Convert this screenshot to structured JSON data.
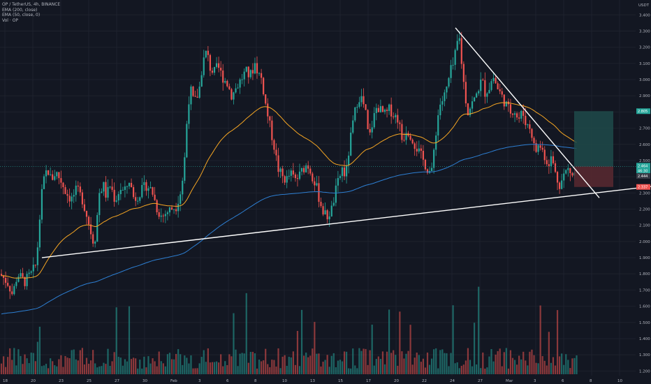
{
  "legend": {
    "symbol": "OP / TetherUS, 4h, BINANCE",
    "ema200": "EMA (200, close)",
    "ema50": "EMA (50, close, 0)",
    "vol": "Vol · OP"
  },
  "currency": "USDT",
  "colors": {
    "background": "#131722",
    "grid": "#1e222d",
    "up": "#26a69a",
    "down": "#ef5350",
    "ema50": "#f6a623",
    "ema200": "#2d7fd3",
    "trendline": "#ffffff",
    "target_zone": "#1f4a4a",
    "stop_zone": "#5a2930",
    "axis_text": "#b2b5be"
  },
  "chart_data": {
    "type": "candlestick",
    "y_axis": {
      "ticks": [
        "3.400",
        "3.300",
        "3.200",
        "3.100",
        "3.000",
        "2.900",
        "2.800",
        "2.700",
        "2.600",
        "2.500",
        "2.400",
        "2.300",
        "2.200",
        "2.100",
        "2.000",
        "1.900",
        "1.800",
        "1.700",
        "1.600",
        "1.500",
        "1.400",
        "1.300",
        "1.200"
      ],
      "range": [
        1.18,
        3.44
      ]
    },
    "x_axis": {
      "ticks": [
        "18",
        "20",
        "23",
        "25",
        "27",
        "30",
        "Feb",
        "3",
        "6",
        "8",
        "10",
        "13",
        "15",
        "17",
        "20",
        "22",
        "24",
        "27",
        "Mar",
        "3",
        "6",
        "8",
        "10"
      ]
    },
    "price_tags": [
      {
        "label": "2.805",
        "color": "#26a69a"
      },
      {
        "label": "2.464",
        "color": "#26a69a"
      },
      {
        "label": "46:30",
        "color": "#26a69a"
      },
      {
        "label": "2.444",
        "color": "#363a45"
      },
      {
        "label": "2.337",
        "color": "#ef5350"
      }
    ],
    "price_path": [
      [
        0,
        1.8
      ],
      [
        12,
        1.74
      ],
      [
        18,
        1.67
      ],
      [
        25,
        1.8
      ],
      [
        35,
        1.75
      ],
      [
        45,
        1.8
      ],
      [
        52,
        1.86
      ],
      [
        56,
        2.1
      ],
      [
        60,
        2.3
      ],
      [
        64,
        2.4
      ],
      [
        68,
        2.45
      ],
      [
        73,
        2.38
      ],
      [
        80,
        2.43
      ],
      [
        88,
        2.37
      ],
      [
        95,
        2.3
      ],
      [
        102,
        2.26
      ],
      [
        110,
        2.32
      ],
      [
        118,
        2.26
      ],
      [
        125,
        2.15
      ],
      [
        130,
        2.06
      ],
      [
        135,
        1.98
      ],
      [
        138,
        2.1
      ],
      [
        142,
        2.3
      ],
      [
        148,
        2.35
      ],
      [
        152,
        2.28
      ],
      [
        158,
        2.35
      ],
      [
        165,
        2.25
      ],
      [
        172,
        2.33
      ],
      [
        178,
        2.3
      ],
      [
        185,
        2.38
      ],
      [
        192,
        2.26
      ],
      [
        200,
        2.3
      ],
      [
        210,
        2.35
      ],
      [
        218,
        2.31
      ],
      [
        225,
        2.2
      ],
      [
        232,
        2.15
      ],
      [
        238,
        2.18
      ],
      [
        245,
        2.2
      ],
      [
        252,
        2.22
      ],
      [
        258,
        2.3
      ],
      [
        262,
        2.4
      ],
      [
        265,
        2.55
      ],
      [
        268,
        2.78
      ],
      [
        272,
        2.95
      ],
      [
        278,
        2.85
      ],
      [
        285,
        2.93
      ],
      [
        290,
        3.1
      ],
      [
        296,
        3.18
      ],
      [
        300,
        3.08
      ],
      [
        306,
        3.04
      ],
      [
        312,
        3.08
      ],
      [
        318,
        3.02
      ],
      [
        325,
        2.98
      ],
      [
        332,
        2.9
      ],
      [
        338,
        2.95
      ],
      [
        345,
        3.0
      ],
      [
        352,
        3.05
      ],
      [
        358,
        3.02
      ],
      [
        365,
        3.1
      ],
      [
        370,
        3.04
      ],
      [
        375,
        3.0
      ],
      [
        380,
        2.85
      ],
      [
        386,
        2.72
      ],
      [
        392,
        2.6
      ],
      [
        398,
        2.45
      ],
      [
        404,
        2.4
      ],
      [
        410,
        2.38
      ],
      [
        416,
        2.42
      ],
      [
        422,
        2.38
      ],
      [
        428,
        2.4
      ],
      [
        434,
        2.45
      ],
      [
        440,
        2.48
      ],
      [
        446,
        2.42
      ],
      [
        452,
        2.35
      ],
      [
        458,
        2.25
      ],
      [
        463,
        2.18
      ],
      [
        468,
        2.15
      ],
      [
        475,
        2.2
      ],
      [
        480,
        2.3
      ],
      [
        485,
        2.38
      ],
      [
        490,
        2.45
      ],
      [
        495,
        2.4
      ],
      [
        500,
        2.58
      ],
      [
        506,
        2.75
      ],
      [
        512,
        2.88
      ],
      [
        516,
        2.9
      ],
      [
        520,
        2.85
      ],
      [
        524,
        2.78
      ],
      [
        528,
        2.62
      ],
      [
        534,
        2.75
      ],
      [
        540,
        2.84
      ],
      [
        546,
        2.8
      ],
      [
        552,
        2.78
      ],
      [
        558,
        2.82
      ],
      [
        564,
        2.78
      ],
      [
        570,
        2.76
      ],
      [
        576,
        2.62
      ],
      [
        582,
        2.7
      ],
      [
        588,
        2.66
      ],
      [
        594,
        2.6
      ],
      [
        600,
        2.55
      ],
      [
        606,
        2.5
      ],
      [
        612,
        2.45
      ],
      [
        618,
        2.42
      ],
      [
        622,
        2.6
      ],
      [
        626,
        2.75
      ],
      [
        630,
        2.85
      ],
      [
        635,
        2.88
      ],
      [
        640,
        2.95
      ],
      [
        645,
        3.05
      ],
      [
        650,
        3.1
      ],
      [
        654,
        3.22
      ],
      [
        658,
        3.25
      ],
      [
        662,
        3.05
      ],
      [
        666,
        2.9
      ],
      [
        670,
        2.8
      ],
      [
        675,
        2.85
      ],
      [
        680,
        2.88
      ],
      [
        685,
        2.95
      ],
      [
        690,
        3.0
      ],
      [
        694,
        2.92
      ],
      [
        700,
        2.95
      ],
      [
        706,
        3.02
      ],
      [
        712,
        2.95
      ],
      [
        718,
        2.9
      ],
      [
        724,
        2.85
      ],
      [
        730,
        2.8
      ],
      [
        736,
        2.82
      ],
      [
        742,
        2.75
      ],
      [
        748,
        2.8
      ],
      [
        754,
        2.72
      ],
      [
        760,
        2.7
      ],
      [
        766,
        2.55
      ],
      [
        772,
        2.6
      ],
      [
        778,
        2.55
      ],
      [
        784,
        2.48
      ],
      [
        790,
        2.52
      ],
      [
        796,
        2.4
      ],
      [
        802,
        2.35
      ],
      [
        808,
        2.42
      ],
      [
        814,
        2.45
      ],
      [
        820,
        2.4
      ],
      [
        826,
        2.44
      ]
    ]
  },
  "annotations": {
    "support_line": {
      "from": [
        60,
        1.9
      ],
      "to": [
        932,
        2.34
      ]
    },
    "resistance_line": {
      "from": [
        652,
        3.32
      ],
      "to": [
        858,
        2.27
      ]
    },
    "position": {
      "entry": 2.464,
      "target": 2.805,
      "stop": 2.337,
      "x_start": 822,
      "x_end": 878
    }
  }
}
